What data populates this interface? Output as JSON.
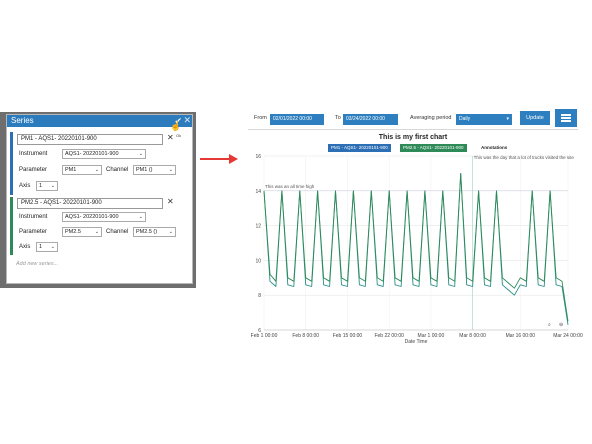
{
  "series_dialog": {
    "title": "Series",
    "ok_icon": "check-icon",
    "close_icon": "close-icon",
    "ok_tooltip": "Ok",
    "series": [
      {
        "name_value": "PM1 - AQS1- 20220101-900",
        "color": "#2c6fb5",
        "instrument_label": "Instrument",
        "instrument_value": "AQS1- 20220101-900",
        "parameter_label": "Parameter",
        "parameter_value": "PM1",
        "channel_label": "Channel",
        "channel_value": "PM1 ()",
        "axis_label": "Axis",
        "axis_value": "1"
      },
      {
        "name_value": "PM2.5 - AQS1- 20220101-900",
        "color": "#2e8b57",
        "instrument_label": "Instrument",
        "instrument_value": "AQS1- 20220101-900",
        "parameter_label": "Parameter",
        "parameter_value": "PM2.5",
        "channel_label": "Channel",
        "channel_value": "PM2.5 ()",
        "axis_label": "Axis",
        "axis_value": "1"
      }
    ],
    "add_series_placeholder": "Add new series..."
  },
  "toolbar": {
    "from_label": "From",
    "from_value": "02/01/2022 00:00",
    "to_label": "To",
    "to_value": "03/24/2022 00:00",
    "averaging_label": "Averaging period",
    "averaging_value": "Daily",
    "update_label": "Update",
    "menu_icon": "hamburger-menu-icon"
  },
  "chart_data": {
    "type": "line",
    "title": "This is my first chart",
    "legend": [
      {
        "name": "PM1 - AQS1- 20220101-900",
        "color": "#2c6fb5"
      },
      {
        "name": "PM2.5 - AQS1- 20220101-900",
        "color": "#2e8b57"
      }
    ],
    "annotations_label": "Annotations",
    "annotations": [
      {
        "x": "Feb 1 00:00",
        "text": "This was an all time high",
        "y": 14
      },
      {
        "x": "Mar 7 00:00",
        "text": "This was the day that a lot of trucks visited the site"
      }
    ],
    "xlabel": "Date Time",
    "ylabel": "",
    "x_ticks": [
      "Feb 1 00:00",
      "Feb 8 00:00",
      "Feb 15 00:00",
      "Feb 22 00:00",
      "Mar 1 00:00",
      "Mar 8 00:00",
      "Mar 16 00:00",
      "Mar 24 00:00"
    ],
    "y_ticks": [
      6,
      8,
      10,
      12,
      14,
      16
    ],
    "ylim": [
      6,
      16
    ],
    "x_range_days": [
      0,
      51
    ],
    "grid": true,
    "series": [
      {
        "name": "PM1 - AQS1- 20220101-900",
        "color": "#2c6fb5",
        "points": [
          [
            0,
            14
          ],
          [
            1,
            8.8
          ],
          [
            2,
            8.5
          ],
          [
            3,
            14
          ],
          [
            4,
            8.6
          ],
          [
            5,
            8.5
          ],
          [
            6,
            14
          ],
          [
            7,
            8.6
          ],
          [
            8,
            8.5
          ],
          [
            9,
            14
          ],
          [
            10,
            8.6
          ],
          [
            11,
            8.5
          ],
          [
            12,
            14
          ],
          [
            13,
            8.6
          ],
          [
            14,
            8.5
          ],
          [
            15,
            14
          ],
          [
            16,
            8.6
          ],
          [
            17,
            8.5
          ],
          [
            18,
            14
          ],
          [
            19,
            8.6
          ],
          [
            20,
            8.5
          ],
          [
            21,
            14
          ],
          [
            22,
            8.6
          ],
          [
            23,
            8.5
          ],
          [
            24,
            14
          ],
          [
            25,
            8.6
          ],
          [
            26,
            8.5
          ],
          [
            27,
            14
          ],
          [
            28,
            8.6
          ],
          [
            29,
            8.5
          ],
          [
            30,
            14
          ],
          [
            31,
            8.6
          ],
          [
            32,
            8.5
          ],
          [
            33,
            15
          ],
          [
            34,
            8.6
          ],
          [
            35,
            8.5
          ],
          [
            36,
            14
          ],
          [
            37,
            8.6
          ],
          [
            38,
            8.5
          ],
          [
            39,
            14
          ],
          [
            40,
            8.6
          ],
          [
            41,
            8.3
          ],
          [
            42,
            8.0
          ],
          [
            43,
            8.6
          ],
          [
            44,
            8.5
          ],
          [
            45,
            14
          ],
          [
            46,
            8.6
          ],
          [
            47,
            8.5
          ],
          [
            48,
            14
          ],
          [
            49,
            8.6
          ],
          [
            50,
            8.5
          ],
          [
            51,
            6.3
          ]
        ]
      },
      {
        "name": "PM2.5 - AQS1- 20220101-900",
        "color": "#2e8b57",
        "points": [
          [
            0,
            14
          ],
          [
            1,
            9.2
          ],
          [
            2,
            8.8
          ],
          [
            3,
            14
          ],
          [
            4,
            9.0
          ],
          [
            5,
            8.8
          ],
          [
            6,
            14
          ],
          [
            7,
            9.0
          ],
          [
            8,
            8.8
          ],
          [
            9,
            14
          ],
          [
            10,
            9.0
          ],
          [
            11,
            8.8
          ],
          [
            12,
            14
          ],
          [
            13,
            9.0
          ],
          [
            14,
            8.8
          ],
          [
            15,
            14
          ],
          [
            16,
            9.0
          ],
          [
            17,
            8.8
          ],
          [
            18,
            14
          ],
          [
            19,
            9.0
          ],
          [
            20,
            8.8
          ],
          [
            21,
            14
          ],
          [
            22,
            9.0
          ],
          [
            23,
            8.8
          ],
          [
            24,
            14
          ],
          [
            25,
            9.0
          ],
          [
            26,
            8.8
          ],
          [
            27,
            14
          ],
          [
            28,
            9.0
          ],
          [
            29,
            8.8
          ],
          [
            30,
            14
          ],
          [
            31,
            9.0
          ],
          [
            32,
            8.8
          ],
          [
            33,
            15
          ],
          [
            34,
            9.0
          ],
          [
            35,
            8.8
          ],
          [
            36,
            14
          ],
          [
            37,
            9.0
          ],
          [
            38,
            8.8
          ],
          [
            39,
            14
          ],
          [
            40,
            9.0
          ],
          [
            41,
            8.7
          ],
          [
            42,
            8.4
          ],
          [
            43,
            9.0
          ],
          [
            44,
            8.8
          ],
          [
            45,
            14
          ],
          [
            46,
            9.0
          ],
          [
            47,
            8.8
          ],
          [
            48,
            14
          ],
          [
            49,
            9.0
          ],
          [
            50,
            8.8
          ],
          [
            51,
            6.5
          ]
        ]
      }
    ],
    "tool_icons": [
      "zoom-icon",
      "zoom-reset-icon"
    ]
  }
}
